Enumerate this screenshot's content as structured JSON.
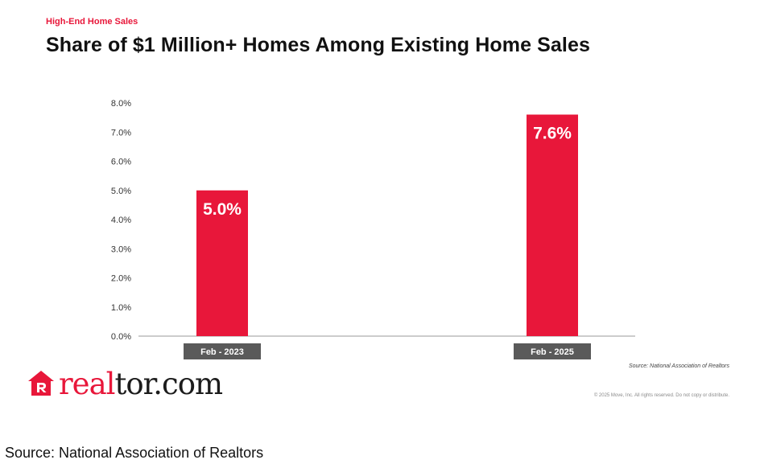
{
  "header": {
    "kicker": "High-End Home Sales",
    "title": "Share of $1 Million+ Homes Among Existing Home Sales"
  },
  "chart_data": {
    "type": "bar",
    "categories": [
      "Feb - 2023",
      "Feb - 2025"
    ],
    "values": [
      5.0,
      7.6
    ],
    "data_labels": [
      "5.0%",
      "7.6%"
    ],
    "ylim": [
      0,
      8
    ],
    "yticks": [
      "0.0%",
      "1.0%",
      "2.0%",
      "3.0%",
      "4.0%",
      "5.0%",
      "6.0%",
      "7.0%",
      "8.0%"
    ],
    "grid": false,
    "legend": "none"
  },
  "footer": {
    "chart_source": "Source: National Association of Realtors",
    "copyright": "© 2025 Move, Inc. All rights reserved. Do not copy or distribute.",
    "caption": "Source: National Association of Realtors"
  },
  "brand": {
    "name": "realtor.com",
    "name_red": "real",
    "name_dark": "tor.com",
    "logo_icon": "house-r-icon"
  },
  "colors": {
    "accent": "#e8173a",
    "category_label_bg": "#5a5a5a",
    "axis": "#9a9a9a"
  }
}
